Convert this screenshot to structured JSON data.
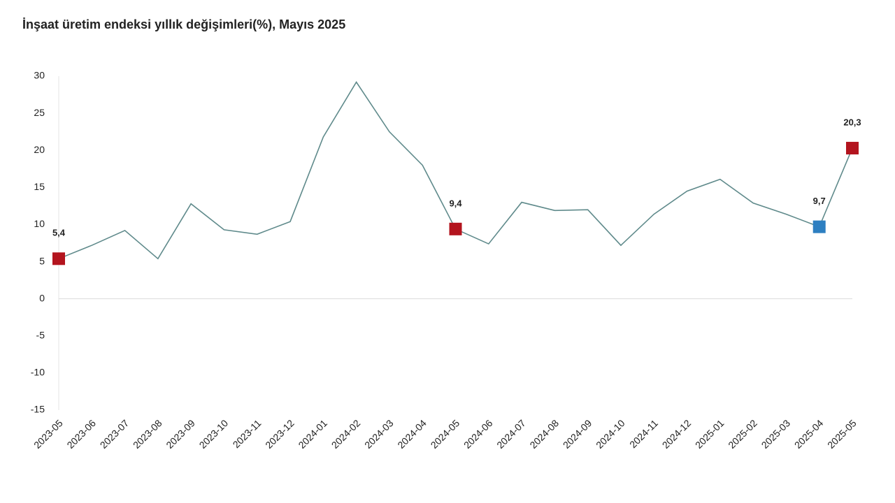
{
  "chart_data": {
    "type": "line",
    "title": "İnşaat üretim endeksi yıllık değişimleri(%), Mayıs 2025",
    "categories": [
      "2023-05",
      "2023-06",
      "2023-07",
      "2023-08",
      "2023-09",
      "2023-10",
      "2023-11",
      "2023-12",
      "2024-01",
      "2024-02",
      "2024-03",
      "2024-04",
      "2024-05",
      "2024-06",
      "2024-07",
      "2024-08",
      "2024-09",
      "2024-10",
      "2024-11",
      "2024-12",
      "2025-01",
      "2025-02",
      "2025-03",
      "2025-04",
      "2025-05"
    ],
    "values": [
      5.4,
      7.2,
      9.2,
      5.4,
      12.8,
      9.3,
      8.7,
      10.4,
      21.8,
      29.2,
      22.5,
      18.0,
      9.4,
      7.4,
      13.0,
      11.9,
      12.0,
      7.2,
      11.4,
      14.5,
      16.1,
      12.9,
      11.4,
      9.7,
      20.3
    ],
    "value_labels": [
      "5,4",
      null,
      null,
      null,
      null,
      null,
      null,
      null,
      null,
      null,
      null,
      null,
      "9,4",
      null,
      null,
      null,
      null,
      null,
      null,
      null,
      null,
      null,
      null,
      "9,7",
      "20,3"
    ],
    "marker_colors": [
      "#b3141e",
      null,
      null,
      null,
      null,
      null,
      null,
      null,
      null,
      null,
      null,
      null,
      "#b3141e",
      null,
      null,
      null,
      null,
      null,
      null,
      null,
      null,
      null,
      null,
      "#2d7fc1",
      "#b3141e"
    ],
    "color": "#5f8a8b",
    "ylim": [
      -15,
      30
    ],
    "yticks": [
      30,
      25,
      20,
      15,
      10,
      5,
      0,
      -5,
      -10,
      -15
    ],
    "grid": false
  }
}
